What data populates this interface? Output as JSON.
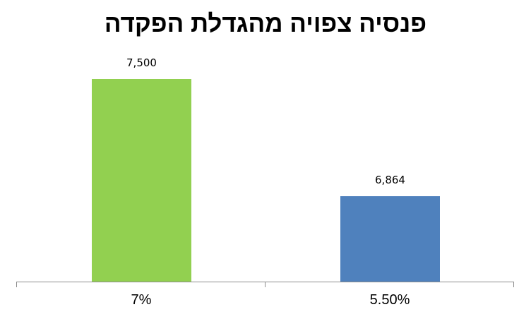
{
  "chart_data": {
    "type": "bar",
    "title": "פנסיה צפויה מהגדלת הפקדה",
    "categories": [
      "7%",
      "5.50%"
    ],
    "values": [
      7500,
      6864
    ],
    "value_labels": [
      "7,500",
      "6,864"
    ],
    "colors": [
      "#92d050",
      "#4f81bd"
    ],
    "xlabel": "",
    "ylabel": "",
    "ylim": [
      6400,
      7700
    ],
    "grid": false,
    "legend": "none"
  }
}
